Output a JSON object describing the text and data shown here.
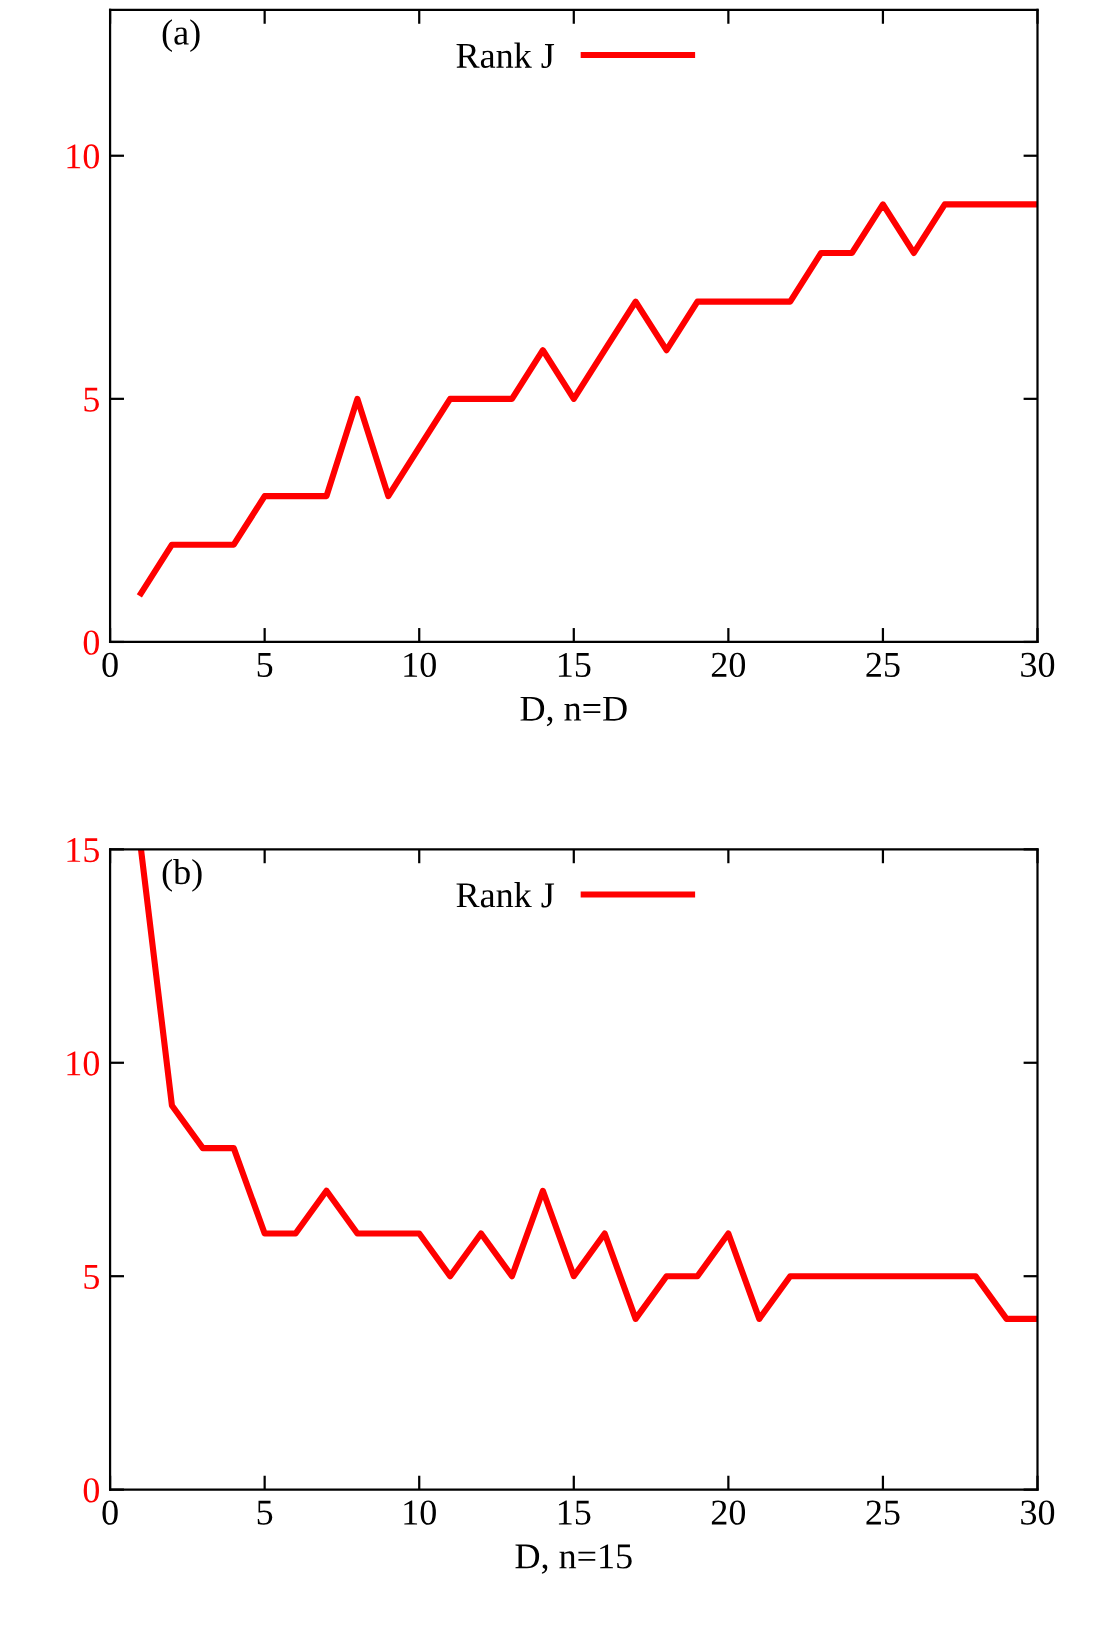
{
  "chart_data": [
    {
      "type": "line",
      "xlabel": "D, n=D",
      "annotations": [
        "(a)"
      ],
      "x": [
        1,
        2,
        3,
        4,
        5,
        6,
        7,
        8,
        9,
        10,
        11,
        12,
        13,
        14,
        15,
        16,
        17,
        18,
        19,
        20,
        21,
        22,
        23,
        24,
        25,
        26,
        27,
        28,
        29,
        30
      ],
      "series": [
        {
          "name": "Rank J",
          "color": "#ff0000",
          "values": [
            1,
            2,
            2,
            2,
            3,
            3,
            3,
            5,
            3,
            4,
            5,
            5,
            5,
            6,
            5,
            6,
            7,
            6,
            7,
            7,
            7,
            7,
            8,
            8,
            9,
            8,
            9,
            9,
            9,
            9
          ]
        }
      ],
      "xlim": [
        0,
        30
      ],
      "xticks": [
        0,
        5,
        10,
        15,
        20,
        25,
        30
      ],
      "ylim": [
        0,
        13
      ],
      "yticks": [
        0,
        5,
        10
      ],
      "grid": false,
      "legend": "top",
      "marker": "none",
      "line_style": "solid"
    },
    {
      "type": "line",
      "xlabel": "D, n=15",
      "annotations": [
        "(b)"
      ],
      "x": [
        1,
        2,
        3,
        4,
        5,
        6,
        7,
        8,
        9,
        10,
        11,
        12,
        13,
        14,
        15,
        16,
        17,
        18,
        19,
        20,
        21,
        22,
        23,
        24,
        25,
        26,
        27,
        28,
        29,
        30
      ],
      "series": [
        {
          "name": "Rank J",
          "color": "#ff0000",
          "values": [
            15,
            9,
            8,
            8,
            6,
            6,
            7,
            6,
            6,
            6,
            5,
            6,
            5,
            7,
            5,
            6,
            4,
            5,
            5,
            6,
            4,
            5,
            5,
            5,
            5,
            5,
            5,
            5,
            4,
            4
          ]
        }
      ],
      "xlim": [
        0,
        30
      ],
      "xticks": [
        0,
        5,
        10,
        15,
        20,
        25,
        30
      ],
      "ylim": [
        0,
        15
      ],
      "yticks": [
        0,
        5,
        10,
        15
      ],
      "grid": false,
      "legend": "top",
      "marker": "none",
      "line_style": "solid"
    }
  ]
}
